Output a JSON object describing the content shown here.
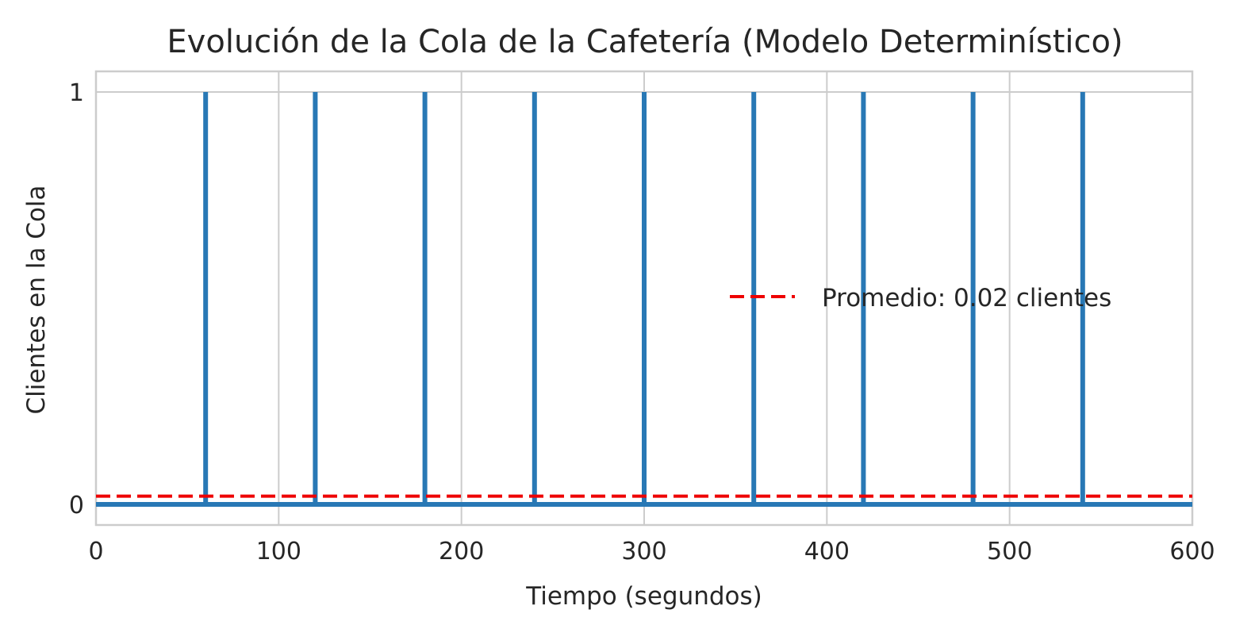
{
  "chart_data": {
    "type": "line",
    "title": "Evolución de la Cola de la Cafetería (Modelo Determinístico)",
    "xlabel": "Tiempo (segundos)",
    "ylabel": "Clientes en la Cola",
    "xlim": [
      0,
      600
    ],
    "ylim": [
      -0.05,
      1.05
    ],
    "x_ticks": [
      0,
      100,
      200,
      300,
      400,
      500,
      600
    ],
    "x_tick_labels": [
      "0",
      "100",
      "200",
      "300",
      "400",
      "500",
      "600"
    ],
    "y_ticks": [
      0,
      1
    ],
    "y_tick_labels": [
      "0",
      "1"
    ],
    "grid": true,
    "legend_position": "center-right",
    "series": [
      {
        "type": "step",
        "color": "#2878b5",
        "spikes_at": [
          60,
          120,
          180,
          240,
          300,
          360,
          420,
          480,
          540
        ],
        "spike_value": 1,
        "base_value": 0
      },
      {
        "name": "Promedio: 0.02 clientes",
        "type": "hline",
        "value": 0.02,
        "color": "#ee0000",
        "style": "dashed"
      }
    ]
  }
}
